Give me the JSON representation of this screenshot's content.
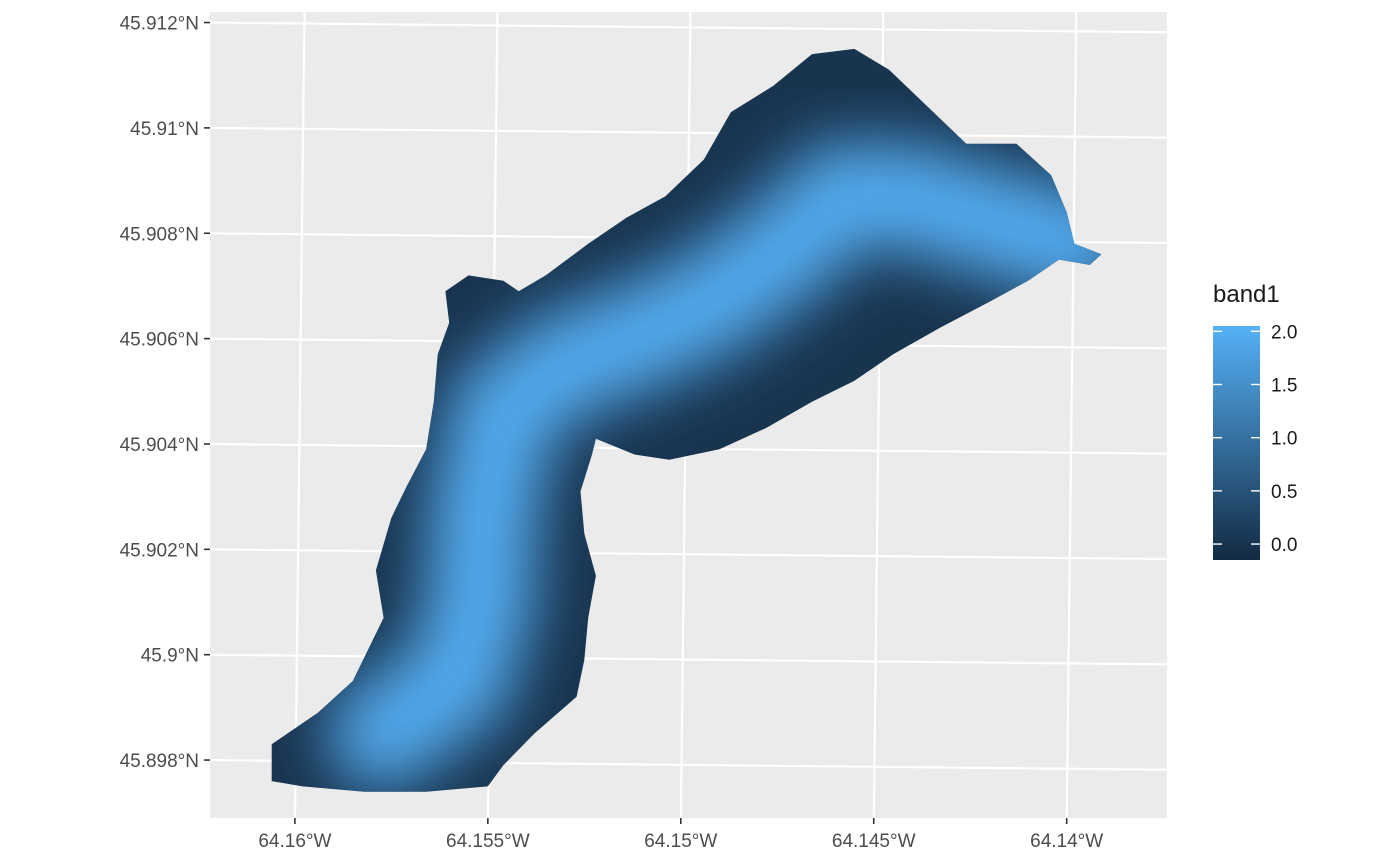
{
  "chart_data": {
    "type": "heatmap",
    "subtype": "raster map",
    "title": "",
    "xlabel": "",
    "ylabel": "",
    "x_ticks": [
      {
        "value": -64.16,
        "label": "64.16°W"
      },
      {
        "value": -64.155,
        "label": "64.155°W"
      },
      {
        "value": -64.15,
        "label": "64.15°W"
      },
      {
        "value": -64.145,
        "label": "64.145°W"
      },
      {
        "value": -64.14,
        "label": "64.14°W"
      }
    ],
    "y_ticks": [
      {
        "value": 45.898,
        "label": "45.898°N"
      },
      {
        "value": 45.9,
        "label": "45.9°N"
      },
      {
        "value": 45.902,
        "label": "45.902°N"
      },
      {
        "value": 45.904,
        "label": "45.904°N"
      },
      {
        "value": 45.906,
        "label": "45.906°N"
      },
      {
        "value": 45.908,
        "label": "45.908°N"
      },
      {
        "value": 45.91,
        "label": "45.91°N"
      },
      {
        "value": 45.912,
        "label": "45.912°N"
      }
    ],
    "xlim": [
      -64.1622,
      -64.1374
    ],
    "ylim": [
      45.8969,
      45.9122
    ],
    "grid": true,
    "panel_background": "#ebebeb",
    "legend": {
      "title": "band1",
      "position": "right",
      "range": [
        -0.15,
        2.05
      ],
      "ticks": [
        {
          "value": 0.0,
          "label": "0.0"
        },
        {
          "value": 0.5,
          "label": "0.5"
        },
        {
          "value": 1.0,
          "label": "1.0"
        },
        {
          "value": 1.5,
          "label": "1.5"
        },
        {
          "value": 2.0,
          "label": "2.0"
        }
      ],
      "low_color": "#132b43",
      "high_color": "#56b1f7"
    },
    "raster": {
      "outline_lonlat": [
        [
          -64.1606,
          45.8976
        ],
        [
          -64.1606,
          45.8983
        ],
        [
          -64.1594,
          45.8989
        ],
        [
          -64.1585,
          45.8995
        ],
        [
          -64.1577,
          45.9007
        ],
        [
          -64.1579,
          45.9016
        ],
        [
          -64.1575,
          45.9026
        ],
        [
          -64.1571,
          45.9032
        ],
        [
          -64.1566,
          45.9039
        ],
        [
          -64.1564,
          45.9048
        ],
        [
          -64.1563,
          45.9057
        ],
        [
          -64.156,
          45.9063
        ],
        [
          -64.1561,
          45.9069
        ],
        [
          -64.1555,
          45.9072
        ],
        [
          -64.1546,
          45.9071
        ],
        [
          -64.1542,
          45.9069
        ],
        [
          -64.1535,
          45.9072
        ],
        [
          -64.1524,
          45.9078
        ],
        [
          -64.1514,
          45.9083
        ],
        [
          -64.1504,
          45.9087
        ],
        [
          -64.1494,
          45.9094
        ],
        [
          -64.1487,
          45.9103
        ],
        [
          -64.1476,
          45.9108
        ],
        [
          -64.1466,
          45.9114
        ],
        [
          -64.1455,
          45.9115
        ],
        [
          -64.1446,
          45.9111
        ],
        [
          -64.1436,
          45.9104
        ],
        [
          -64.1426,
          45.9097
        ],
        [
          -64.1413,
          45.9097
        ],
        [
          -64.1404,
          45.9091
        ],
        [
          -64.14,
          45.9084
        ],
        [
          -64.1398,
          45.9078
        ],
        [
          -64.1391,
          45.9076
        ],
        [
          -64.1394,
          45.9074
        ],
        [
          -64.1402,
          45.9075
        ],
        [
          -64.141,
          45.9071
        ],
        [
          -64.142,
          45.9067
        ],
        [
          -64.1433,
          45.9062
        ],
        [
          -64.1445,
          45.9057
        ],
        [
          -64.1455,
          45.9052
        ],
        [
          -64.1466,
          45.9048
        ],
        [
          -64.1478,
          45.9043
        ],
        [
          -64.149,
          45.9039
        ],
        [
          -64.1503,
          45.9037
        ],
        [
          -64.1512,
          45.9038
        ],
        [
          -64.1522,
          45.9041
        ],
        [
          -64.1523,
          45.9038
        ],
        [
          -64.1526,
          45.9031
        ],
        [
          -64.1525,
          45.9023
        ],
        [
          -64.1522,
          45.9015
        ],
        [
          -64.1524,
          45.9007
        ],
        [
          -64.1525,
          45.8999
        ],
        [
          -64.1527,
          45.8992
        ],
        [
          -64.1538,
          45.8985
        ],
        [
          -64.1546,
          45.8979
        ],
        [
          -64.155,
          45.8975
        ],
        [
          -64.1566,
          45.8974
        ],
        [
          -64.1582,
          45.8974
        ],
        [
          -64.1598,
          45.8975
        ]
      ],
      "spine_lonlat": [
        [
          -64.1577,
          45.8985
        ],
        [
          -64.1558,
          45.8995
        ],
        [
          -64.1552,
          45.901
        ],
        [
          -64.1551,
          45.9027
        ],
        [
          -64.1546,
          45.9046
        ],
        [
          -64.153,
          45.9055
        ],
        [
          -64.1512,
          45.906
        ],
        [
          -64.1492,
          45.9067
        ],
        [
          -64.1473,
          45.9077
        ],
        [
          -64.1458,
          45.9087
        ],
        [
          -64.1442,
          45.9087
        ],
        [
          -64.1418,
          45.9082
        ],
        [
          -64.1398,
          45.9078
        ]
      ],
      "peak_value": 2.0,
      "edge_value": 0.0
    }
  }
}
